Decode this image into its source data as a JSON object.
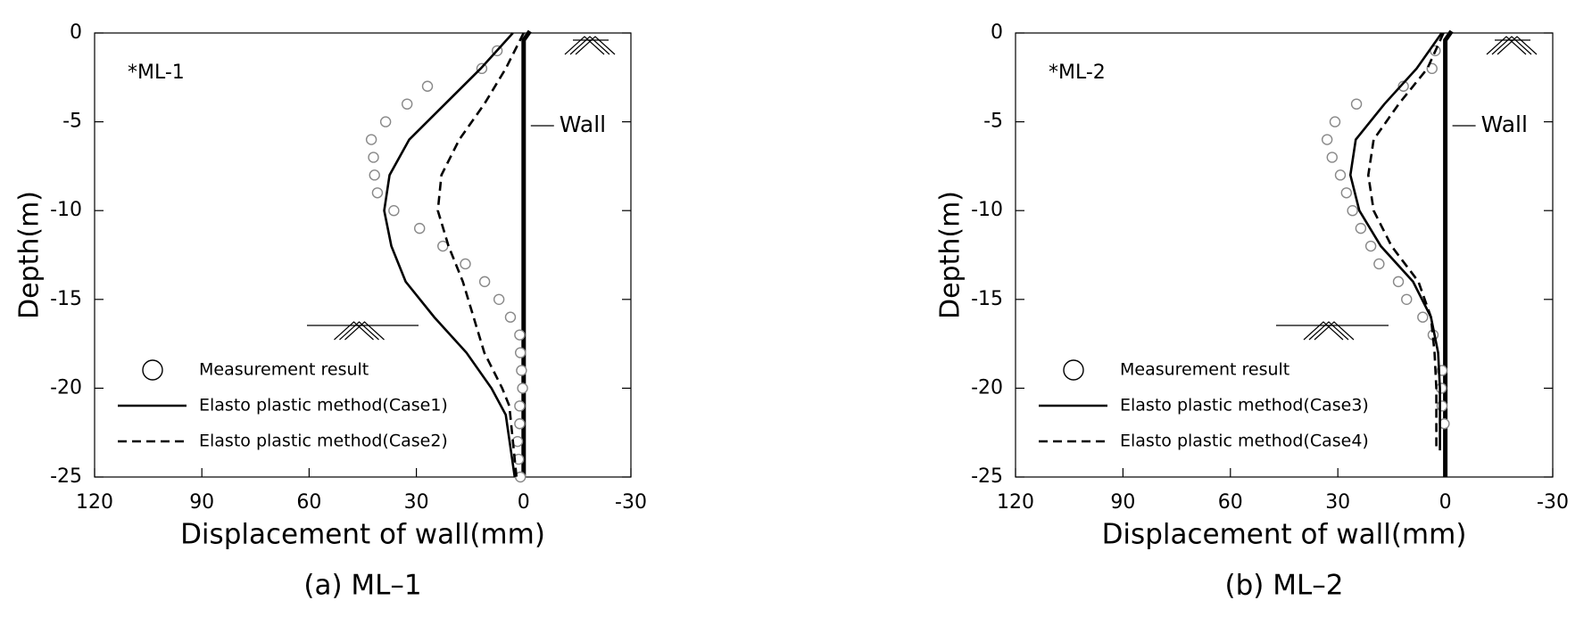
{
  "chart_data": [
    {
      "type": "line",
      "title": "(a) ML–1",
      "annotation": "*ML-1",
      "wall_label": "Wall",
      "xlabel": "Displacement of wall(mm)",
      "ylabel": "Depth(m)",
      "xlim": [
        120,
        -30
      ],
      "ylim": [
        -25,
        0
      ],
      "xticks": [
        120,
        90,
        60,
        30,
        0,
        -30
      ],
      "yticks": [
        0,
        -5,
        -10,
        -15,
        -20,
        -25
      ],
      "series": [
        {
          "name": "Measurement result",
          "marker": "circle",
          "color": "#888888",
          "x": [
            7.4,
            11.7,
            26.9,
            32.6,
            38.6,
            42.6,
            42,
            41.7,
            40.9,
            36.3,
            29.1,
            22.6,
            16.3,
            10.9,
            6.9,
            3.7,
            1.1,
            0.9,
            0.6,
            0.3,
            1.1,
            1.1,
            1.7,
            1.4,
            0.9
          ],
          "values": [
            -1,
            -2,
            -3,
            -4,
            -5,
            -6,
            -7,
            -8,
            -9,
            -10,
            -11,
            -12,
            -13,
            -14,
            -15,
            -16,
            -17,
            -18,
            -19,
            -20,
            -21,
            -22,
            -23,
            -24,
            -25
          ]
        },
        {
          "name": "Elasto plastic method(Case1)",
          "style": "solid",
          "color": "#000000",
          "x": [
            3,
            12,
            22,
            32,
            37.5,
            39,
            37,
            33,
            25,
            16,
            9,
            5,
            2.5
          ],
          "values": [
            0,
            -2,
            -4,
            -6,
            -8,
            -10,
            -12,
            -14,
            -16,
            -18,
            -20,
            -21.5,
            -25
          ]
        },
        {
          "name": "Elasto plastic method(Case2)",
          "style": "dashed",
          "color": "#000000",
          "x": [
            0,
            5,
            11,
            18,
            23,
            24,
            21,
            17,
            14,
            11,
            6,
            4,
            2
          ],
          "values": [
            0,
            -2,
            -4,
            -6,
            -8,
            -10,
            -12,
            -14,
            -16,
            -18,
            -20,
            -21,
            -25
          ]
        }
      ]
    },
    {
      "type": "line",
      "title": "(b) ML–2",
      "annotation": "*ML-2",
      "wall_label": "Wall",
      "xlabel": "Displacement of wall(mm)",
      "ylabel": "Depth(m)",
      "xlim": [
        120,
        -30
      ],
      "ylim": [
        -25,
        0
      ],
      "xticks": [
        120,
        90,
        60,
        30,
        0,
        -30
      ],
      "yticks": [
        0,
        -5,
        -10,
        -15,
        -20,
        -25
      ],
      "series": [
        {
          "name": "Measurement result",
          "marker": "circle",
          "color": "#888888",
          "x": [
            2.8,
            3.7,
            11.7,
            24.8,
            30.8,
            33,
            31.6,
            29.3,
            27.6,
            25.9,
            23.6,
            20.8,
            18.5,
            13.1,
            10.8,
            6.3,
            3.4,
            0.9,
            1.1,
            0.9,
            0.3
          ],
          "values": [
            -1,
            -2,
            -3,
            -4,
            -5,
            -6,
            -7,
            -8,
            -9,
            -10,
            -11,
            -12,
            -13,
            -14,
            -15,
            -16,
            -17,
            -19,
            -20,
            -21,
            -22
          ]
        },
        {
          "name": "Elasto plastic method(Case3)",
          "style": "solid",
          "color": "#000000",
          "x": [
            1,
            8,
            17,
            25,
            26.5,
            24,
            18,
            9,
            4,
            2,
            1.5,
            1.5
          ],
          "values": [
            0,
            -2,
            -4,
            -6,
            -8,
            -10,
            -12,
            -14,
            -16,
            -18,
            -20,
            -23.5
          ]
        },
        {
          "name": "Elasto plastic method(Case4)",
          "style": "dashed",
          "color": "#000000",
          "x": [
            0.5,
            5,
            13,
            20,
            21.5,
            20,
            15,
            7.5,
            4,
            3,
            2.5,
            2.5
          ],
          "values": [
            0,
            -2,
            -4,
            -6,
            -8,
            -10,
            -12,
            -14,
            -16,
            -18,
            -20,
            -23.5
          ]
        }
      ]
    }
  ]
}
